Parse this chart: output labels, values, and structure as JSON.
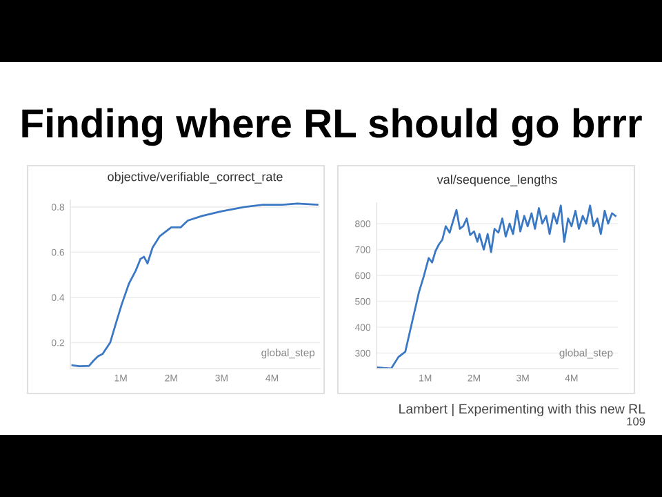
{
  "chart_data": [
    {
      "type": "other",
      "title": "Finding where RL should go brrr",
      "annotations": [
        "Lambert | Experimenting with this new RL",
        "109"
      ]
    },
    {
      "type": "line",
      "title": "objective/verifiable_correct_rate",
      "xlabel": "global_step",
      "grid": "y",
      "legend": false,
      "xlim": [
        0,
        4950000
      ],
      "ylim": [
        0.085,
        0.83
      ],
      "xticks": [
        {
          "value": 1000000,
          "label": "1M"
        },
        {
          "value": 2000000,
          "label": "2M"
        },
        {
          "value": 3000000,
          "label": "3M"
        },
        {
          "value": 4000000,
          "label": "4M"
        }
      ],
      "yticks": [
        0.2,
        0.4,
        0.6,
        0.8
      ],
      "series": [
        {
          "color": "#3b78c4",
          "x": [
            40000,
            180000,
            370000,
            460000,
            550000,
            640000,
            790000,
            910000,
            1020000,
            1160000,
            1300000,
            1390000,
            1460000,
            1530000,
            1630000,
            1770000,
            2000000,
            2190000,
            2330000,
            2610000,
            2980000,
            3450000,
            3820000,
            4200000,
            4500000,
            4900000
          ],
          "values": [
            0.1,
            0.095,
            0.097,
            0.12,
            0.14,
            0.15,
            0.2,
            0.29,
            0.37,
            0.46,
            0.52,
            0.57,
            0.58,
            0.55,
            0.62,
            0.67,
            0.71,
            0.71,
            0.74,
            0.76,
            0.78,
            0.8,
            0.81,
            0.81,
            0.815,
            0.81
          ]
        }
      ]
    },
    {
      "type": "line",
      "title": "val/sequence_lengths",
      "xlabel": "global_step",
      "grid": "y",
      "legend": false,
      "xlim": [
        0,
        4950000
      ],
      "ylim": [
        240,
        880
      ],
      "xticks": [
        {
          "value": 1000000,
          "label": "1M"
        },
        {
          "value": 2000000,
          "label": "2M"
        },
        {
          "value": 3000000,
          "label": "3M"
        },
        {
          "value": 4000000,
          "label": "4M"
        }
      ],
      "yticks": [
        300,
        400,
        500,
        600,
        700,
        800
      ],
      "series": [
        {
          "color": "#3b78c4",
          "x": [
            0,
            150000,
            300000,
            450000,
            590000,
            730000,
            870000,
            970000,
            1070000,
            1140000,
            1210000,
            1280000,
            1350000,
            1420000,
            1500000,
            1570000,
            1640000,
            1710000,
            1780000,
            1850000,
            1920000,
            2000000,
            2070000,
            2110000,
            2200000,
            2280000,
            2350000,
            2420000,
            2500000,
            2580000,
            2650000,
            2730000,
            2800000,
            2880000,
            2950000,
            3030000,
            3100000,
            3180000,
            3250000,
            3330000,
            3400000,
            3480000,
            3550000,
            3630000,
            3700000,
            3780000,
            3850000,
            3930000,
            4000000,
            4080000,
            4150000,
            4230000,
            4300000,
            4380000,
            4450000,
            4530000,
            4600000,
            4680000,
            4750000,
            4830000,
            4900000
          ],
          "values": [
            245,
            242,
            240,
            285,
            305,
            420,
            535,
            597,
            667,
            650,
            694,
            720,
            738,
            790,
            765,
            810,
            853,
            780,
            791,
            820,
            756,
            770,
            730,
            760,
            700,
            760,
            690,
            780,
            765,
            820,
            750,
            800,
            760,
            850,
            770,
            830,
            790,
            840,
            780,
            860,
            800,
            830,
            760,
            840,
            800,
            870,
            730,
            820,
            790,
            850,
            780,
            830,
            800,
            870,
            790,
            820,
            760,
            850,
            800,
            840,
            830
          ]
        }
      ]
    }
  ]
}
